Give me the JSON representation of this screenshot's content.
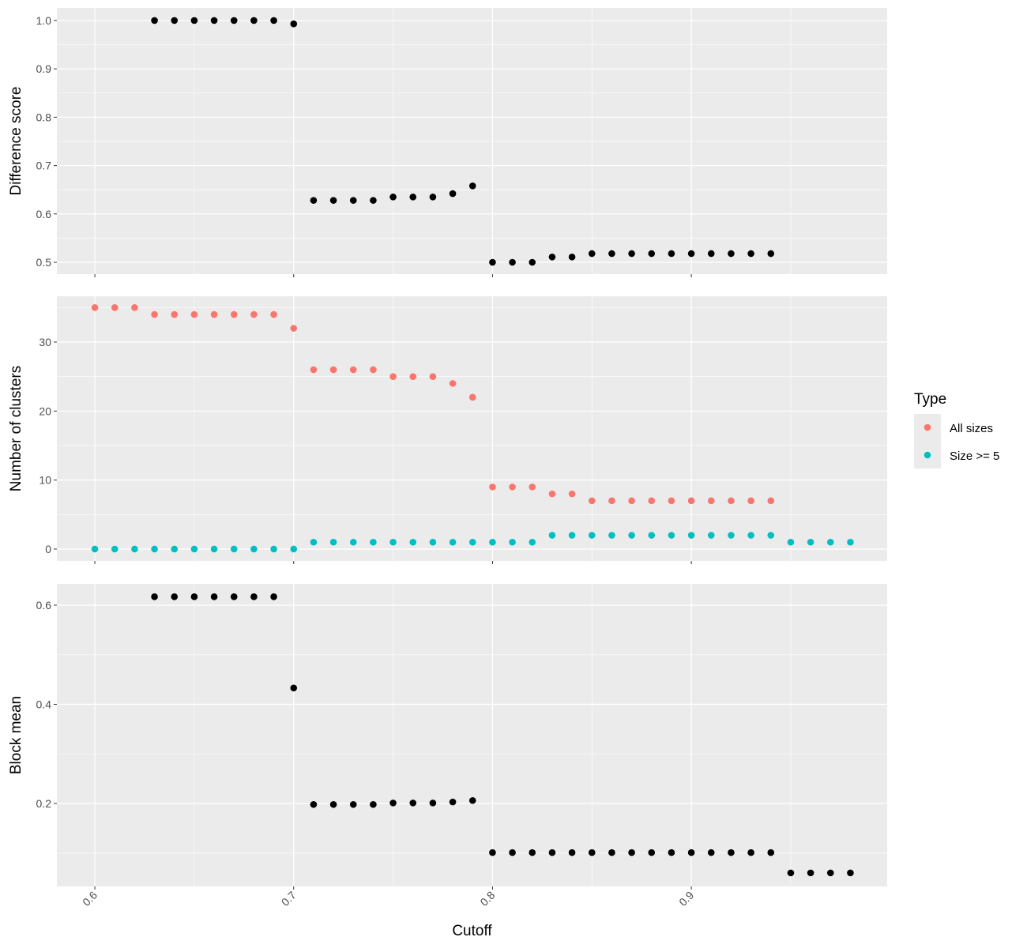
{
  "chart_data": [
    {
      "type": "scatter",
      "ylabel": "Difference score",
      "color": "#000000",
      "x": [
        0.63,
        0.64,
        0.65,
        0.66,
        0.67,
        0.68,
        0.69,
        0.7,
        0.71,
        0.72,
        0.73,
        0.74,
        0.75,
        0.76,
        0.77,
        0.78,
        0.79,
        0.8,
        0.81,
        0.82,
        0.83,
        0.84,
        0.85,
        0.86,
        0.87,
        0.88,
        0.89,
        0.9,
        0.91,
        0.92,
        0.93,
        0.94
      ],
      "values": [
        1.0,
        1.0,
        1.0,
        1.0,
        1.0,
        1.0,
        1.0,
        0.993,
        0.628,
        0.628,
        0.628,
        0.628,
        0.635,
        0.635,
        0.635,
        0.642,
        0.658,
        0.5,
        0.5,
        0.5,
        0.511,
        0.511,
        0.518,
        0.518,
        0.518,
        0.518,
        0.518,
        0.518,
        0.518,
        0.518,
        0.518,
        0.518
      ],
      "ylim": [
        0.4755,
        1.026
      ],
      "yticks": [
        0.5,
        0.6,
        0.7,
        0.8,
        0.9,
        {
          "value": 1,
          "label": "1.0"
        }
      ]
    },
    {
      "type": "scatter",
      "ylabel": "Number of clusters",
      "legend_title": "Type",
      "legend": "right",
      "series": [
        {
          "name": "All sizes",
          "color": "#F8766D",
          "x": [
            0.6,
            0.61,
            0.62,
            0.63,
            0.64,
            0.65,
            0.66,
            0.67,
            0.68,
            0.69,
            0.7,
            0.71,
            0.72,
            0.73,
            0.74,
            0.75,
            0.76,
            0.77,
            0.78,
            0.79,
            0.8,
            0.81,
            0.82,
            0.83,
            0.84,
            0.85,
            0.86,
            0.87,
            0.88,
            0.89,
            0.9,
            0.91,
            0.92,
            0.93,
            0.94
          ],
          "values": [
            35,
            35,
            35,
            34,
            34,
            34,
            34,
            34,
            34,
            34,
            32,
            26,
            26,
            26,
            26,
            25,
            25,
            25,
            24,
            22,
            9,
            9,
            9,
            8,
            8,
            7,
            7,
            7,
            7,
            7,
            7,
            7,
            7,
            7,
            7
          ]
        },
        {
          "name": "Size >= 5",
          "color": "#00BFC4",
          "x": [
            0.6,
            0.61,
            0.62,
            0.63,
            0.64,
            0.65,
            0.66,
            0.67,
            0.68,
            0.69,
            0.7,
            0.71,
            0.72,
            0.73,
            0.74,
            0.75,
            0.76,
            0.77,
            0.78,
            0.79,
            0.8,
            0.81,
            0.82,
            0.83,
            0.84,
            0.85,
            0.86,
            0.87,
            0.88,
            0.89,
            0.9,
            0.91,
            0.92,
            0.93,
            0.94,
            0.95,
            0.96,
            0.97,
            0.98
          ],
          "values": [
            0,
            0,
            0,
            0,
            0,
            0,
            0,
            0,
            0,
            0,
            0,
            1,
            1,
            1,
            1,
            1,
            1,
            1,
            1,
            1,
            1,
            1,
            1,
            2,
            2,
            2,
            2,
            2,
            2,
            2,
            2,
            2,
            2,
            2,
            2,
            1,
            1,
            1,
            1
          ]
        }
      ],
      "ylim": [
        -1.72,
        36.64
      ],
      "yticks": [
        0,
        10,
        20,
        30
      ]
    },
    {
      "type": "scatter",
      "ylabel": "Block mean",
      "xlabel": "Cutoff",
      "color": "#000000",
      "x": [
        0.63,
        0.64,
        0.65,
        0.66,
        0.67,
        0.68,
        0.69,
        0.7,
        0.71,
        0.72,
        0.73,
        0.74,
        0.75,
        0.76,
        0.77,
        0.78,
        0.79,
        0.8,
        0.81,
        0.82,
        0.83,
        0.84,
        0.85,
        0.86,
        0.87,
        0.88,
        0.89,
        0.9,
        0.91,
        0.92,
        0.93,
        0.94,
        0.95,
        0.96,
        0.97,
        0.98
      ],
      "values": [
        0.617,
        0.617,
        0.617,
        0.617,
        0.617,
        0.617,
        0.617,
        0.433,
        0.198,
        0.198,
        0.198,
        0.198,
        0.201,
        0.201,
        0.201,
        0.203,
        0.206,
        0.101,
        0.101,
        0.101,
        0.101,
        0.101,
        0.101,
        0.101,
        0.101,
        0.101,
        0.101,
        0.101,
        0.101,
        0.101,
        0.101,
        0.101,
        0.06,
        0.06,
        0.06,
        0.06
      ],
      "ylim": [
        0.0327,
        0.643
      ],
      "yticks": [
        0.2,
        0.4,
        0.6
      ],
      "xlim": [
        0.5809,
        0.9985
      ],
      "xticks": [
        0.6,
        0.7,
        0.8,
        0.9
      ]
    }
  ]
}
